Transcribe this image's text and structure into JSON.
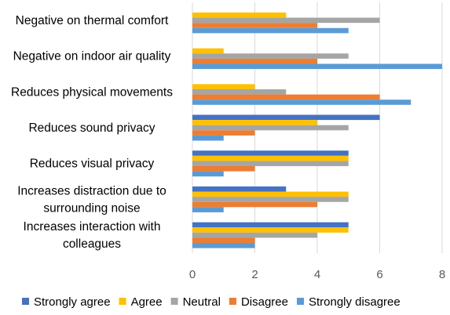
{
  "chart_data": {
    "type": "bar",
    "orientation": "horizontal",
    "categories": [
      "Negative on thermal comfort",
      "Negative on indoor air quality",
      "Reduces physical movements",
      "Reduces sound privacy",
      "Reduces visual privacy",
      "Increases distraction due to surrounding noise",
      "Increases interaction with colleagues"
    ],
    "category_lines": [
      [
        "Negative on thermal comfort"
      ],
      [
        "Negative on indoor air quality"
      ],
      [
        "Reduces physical movements"
      ],
      [
        "Reduces sound privacy"
      ],
      [
        "Reduces visual privacy"
      ],
      [
        "Increases distraction due to",
        "surrounding noise"
      ],
      [
        "Increases interaction with",
        "colleagues"
      ]
    ],
    "series": [
      {
        "name": "Strongly agree",
        "color": "#4472C4",
        "values": [
          0,
          0,
          0,
          6,
          5,
          3,
          5
        ]
      },
      {
        "name": "Agree",
        "color": "#FFC000",
        "values": [
          3,
          1,
          2,
          4,
          5,
          5,
          5
        ]
      },
      {
        "name": "Neutral",
        "color": "#A5A5A5",
        "values": [
          6,
          5,
          3,
          5,
          5,
          5,
          4
        ]
      },
      {
        "name": "Disagree",
        "color": "#ED7D31",
        "values": [
          4,
          4,
          6,
          2,
          2,
          4,
          2
        ]
      },
      {
        "name": "Strongly disagree",
        "color": "#5B9BD5",
        "values": [
          5,
          8,
          7,
          1,
          1,
          1,
          2
        ]
      }
    ],
    "xlim": [
      0,
      8
    ],
    "xticks": [
      0,
      2,
      4,
      6,
      8
    ],
    "grid": true,
    "legend_position": "bottom",
    "title": "",
    "xlabel": "",
    "ylabel": ""
  }
}
